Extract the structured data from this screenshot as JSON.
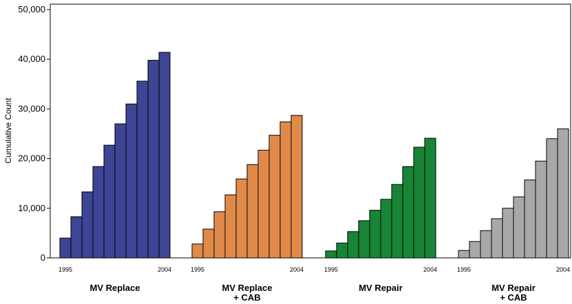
{
  "chart_data": {
    "type": "grouped-bar",
    "y_label": "Cumulative Count",
    "categories": [
      "1995",
      null,
      null,
      null,
      null,
      null,
      null,
      null,
      null,
      "2004"
    ],
    "series": [
      {
        "name": "MV Replace",
        "color": "#3d4594",
        "values": [
          4000,
          8300,
          13300,
          18400,
          22700,
          27000,
          31000,
          35600,
          39800,
          41400
        ]
      },
      {
        "name": "MV Replace\n+ CAB",
        "color": "#e08a4a",
        "values": [
          2800,
          5800,
          9300,
          12700,
          15900,
          18800,
          21700,
          24700,
          27400,
          28700
        ]
      },
      {
        "name": "MV Repair",
        "color": "#178535",
        "values": [
          1400,
          3000,
          5300,
          7500,
          9600,
          11800,
          14800,
          18400,
          22300,
          24100
        ]
      },
      {
        "name": "MV Repair\n+ CAB",
        "color": "#a8a8a8",
        "values": [
          1500,
          3300,
          5500,
          7900,
          10000,
          12300,
          15700,
          19500,
          24000,
          26000
        ]
      }
    ],
    "ylim": [
      0,
      50000
    ],
    "yticks": [
      0,
      {
        "value": 10000,
        "label": "10,000"
      },
      {
        "value": 20000,
        "label": "20,000"
      },
      {
        "value": 30000,
        "label": "30,000"
      },
      {
        "value": 40000,
        "label": "40,000"
      },
      {
        "value": 50000,
        "label": "50,000"
      }
    ]
  }
}
